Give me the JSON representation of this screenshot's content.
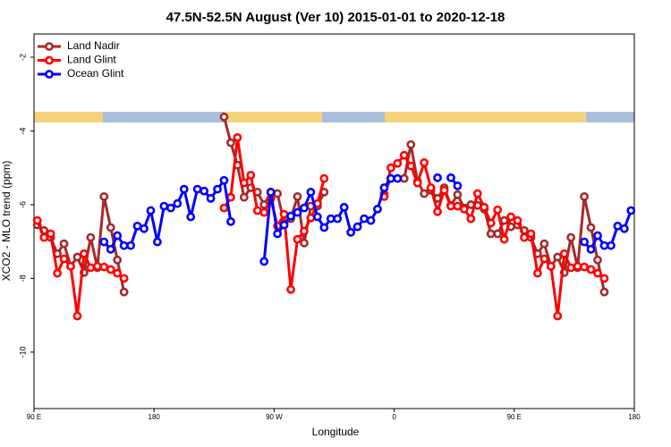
{
  "chart_data": {
    "type": "line",
    "title": "47.5N-52.5N August (Ver 10)   2015-01-01 to 2020-12-18",
    "x_label": "Longitude",
    "y_label": "XCO2 - MLO trend (ppm)",
    "x": [
      92.5,
      97.5,
      102.5,
      107.5,
      112.5,
      117.5,
      122.5,
      127.5,
      132.5,
      137.5,
      142.5,
      147.5,
      152.5,
      157.5,
      162.5,
      167.5,
      172.5,
      177.5,
      182.5,
      187.5,
      192.5,
      197.5,
      202.5,
      207.5,
      212.5,
      217.5,
      222.5,
      227.5,
      232.5,
      237.5,
      242.5,
      247.5,
      252.5,
      257.5,
      262.5,
      267.5,
      272.5,
      277.5,
      282.5,
      287.5,
      292.5,
      297.5,
      302.5,
      307.5,
      312.5,
      317.5,
      322.5,
      327.5,
      332.5,
      337.5,
      342.5,
      347.5,
      352.5,
      357.5,
      362.5,
      367.5,
      372.5,
      377.5,
      382.5,
      387.5,
      392.5,
      397.5,
      402.5,
      407.5,
      412.5,
      417.5,
      422.5,
      427.5,
      432.5,
      437.5,
      442.5,
      447.5,
      452.5,
      457.5,
      462.5,
      467.5,
      472.5,
      477.5,
      482.5,
      487.5,
      492.5,
      497.5,
      502.5,
      507.5,
      512.5,
      517.5,
      522.5,
      527.5,
      532.5,
      537.5
    ],
    "series": [
      {
        "name": "Land Nadir",
        "color": "#a52a2a",
        "values": [
          -6.55,
          -6.7,
          -6.89,
          -7.33,
          -7.06,
          -7.67,
          -7.42,
          -7.84,
          -6.89,
          -7.71,
          -5.78,
          -6.62,
          -7.5,
          -8.37,
          null,
          null,
          null,
          null,
          null,
          null,
          null,
          null,
          null,
          null,
          null,
          null,
          null,
          null,
          -3.62,
          -4.32,
          -4.93,
          -5.8,
          -5.54,
          -5.66,
          -6.0,
          -5.66,
          -5.7,
          -6.5,
          -6.38,
          -5.78,
          -7.04,
          -6.04,
          -6.04,
          -5.66,
          null,
          null,
          null,
          null,
          null,
          null,
          null,
          null,
          -5.7,
          -5.29,
          -5.29,
          -5.29,
          -4.37,
          -5.37,
          -5.7,
          -5.61,
          -5.83,
          -5.54,
          -6.02,
          -5.73,
          -6.09,
          -6.0,
          -6.02,
          -6.12,
          -6.79,
          -6.79,
          -6.43,
          -6.6,
          -6.55,
          -6.7,
          -6.89,
          -7.33,
          -7.06,
          -7.67,
          -7.42,
          -7.84,
          -6.89,
          -7.71,
          -5.78,
          -6.62,
          -7.5,
          -8.37,
          null,
          null,
          null,
          null
        ]
      },
      {
        "name": "Land Glint",
        "color": "#ff0000",
        "values": [
          -6.43,
          -6.89,
          -6.79,
          -7.86,
          -7.47,
          -7.67,
          -9.02,
          -7.33,
          -7.71,
          -7.67,
          -7.69,
          -7.76,
          -7.86,
          -8.0,
          null,
          null,
          null,
          null,
          null,
          null,
          null,
          null,
          null,
          null,
          null,
          null,
          null,
          null,
          -6.09,
          -5.8,
          -4.18,
          -5.41,
          -5.2,
          -6.16,
          -6.21,
          -5.83,
          -6.58,
          -6.26,
          -8.3,
          -6.94,
          -6.72,
          -6.36,
          -5.97,
          -5.29,
          null,
          null,
          null,
          null,
          null,
          null,
          null,
          null,
          -5.78,
          -5.0,
          -4.88,
          -4.66,
          -4.95,
          -5.41,
          -4.86,
          -5.54,
          -6.19,
          -5.61,
          -6.04,
          -6.04,
          -6.12,
          -6.38,
          -5.7,
          -6.07,
          -6.5,
          -6.14,
          -6.94,
          -6.33,
          -6.43,
          -6.89,
          -6.79,
          -7.86,
          -7.47,
          -7.67,
          -9.02,
          -7.33,
          -7.71,
          -7.67,
          -7.69,
          -7.76,
          -7.86,
          -8.0,
          null,
          null,
          null,
          null
        ]
      },
      {
        "name": "Ocean Glint",
        "color": "#0000ff",
        "values": [
          null,
          null,
          null,
          null,
          null,
          null,
          null,
          null,
          null,
          null,
          -7.01,
          -7.21,
          -6.84,
          -7.11,
          -7.11,
          -6.58,
          -6.65,
          -6.16,
          -7.01,
          -6.04,
          -6.09,
          -5.97,
          -5.58,
          -6.33,
          -5.58,
          -5.63,
          -5.83,
          -5.58,
          -5.34,
          -6.46,
          null,
          null,
          null,
          null,
          -7.54,
          -5.66,
          -6.79,
          -6.55,
          -6.31,
          -6.21,
          -6.09,
          -5.66,
          -6.33,
          -6.62,
          -6.38,
          -6.38,
          -6.07,
          -6.75,
          -6.6,
          -6.38,
          -6.43,
          -6.12,
          -5.54,
          -5.29,
          -5.29,
          null,
          null,
          null,
          null,
          null,
          -5.27,
          null,
          -5.27,
          -5.49,
          null,
          null,
          null,
          null,
          null,
          null,
          null,
          null,
          null,
          null,
          null,
          null,
          null,
          null,
          null,
          null,
          null,
          null,
          -7.01,
          -7.21,
          -6.84,
          -7.11,
          -7.11,
          -6.58,
          -6.65,
          -6.16
        ]
      }
    ],
    "xlim": [
      90,
      540
    ],
    "xticks": [
      {
        "value": 90,
        "label": "90 E"
      },
      180,
      {
        "value": 270,
        "label": "90 W"
      },
      {
        "value": 360,
        "label": "0"
      },
      {
        "value": 450,
        "label": "90 E"
      },
      {
        "value": 540,
        "label": "180"
      }
    ],
    "ylim": [
      -11.53,
      -1.37
    ],
    "yticks": [
      -10,
      -8,
      -6,
      -4,
      -2
    ],
    "legend": "top-left"
  }
}
